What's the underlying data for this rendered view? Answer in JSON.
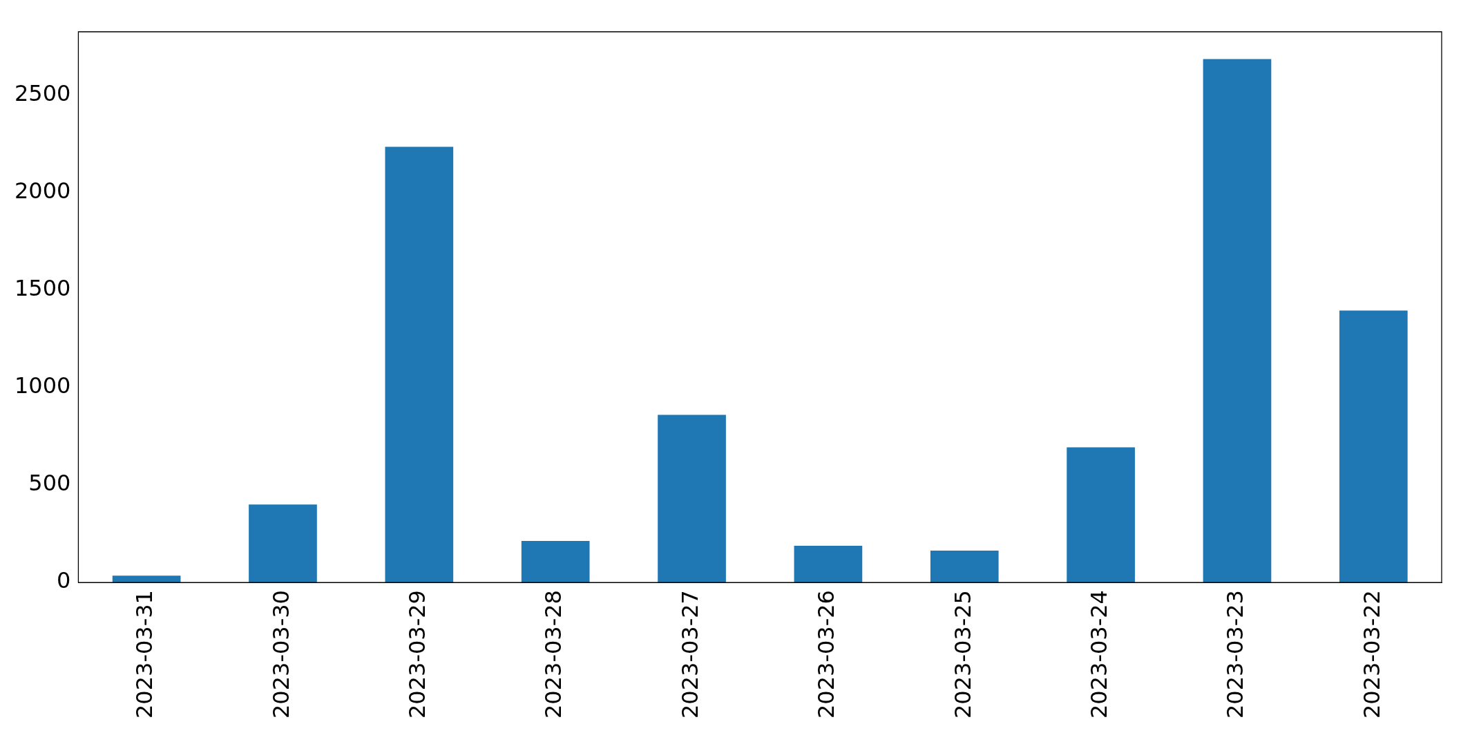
{
  "chart_data": {
    "type": "bar",
    "categories": [
      "2023-03-31",
      "2023-03-30",
      "2023-03-29",
      "2023-03-28",
      "2023-03-27",
      "2023-03-26",
      "2023-03-25",
      "2023-03-24",
      "2023-03-23",
      "2023-03-22"
    ],
    "values": [
      35,
      400,
      2235,
      213,
      860,
      188,
      163,
      693,
      2685,
      1395
    ],
    "color": "#1f77b4",
    "ylim": [
      0,
      2825
    ],
    "yticks": [
      0,
      500,
      1000,
      1500,
      2000,
      2500
    ],
    "grid": false,
    "legend": false
  }
}
